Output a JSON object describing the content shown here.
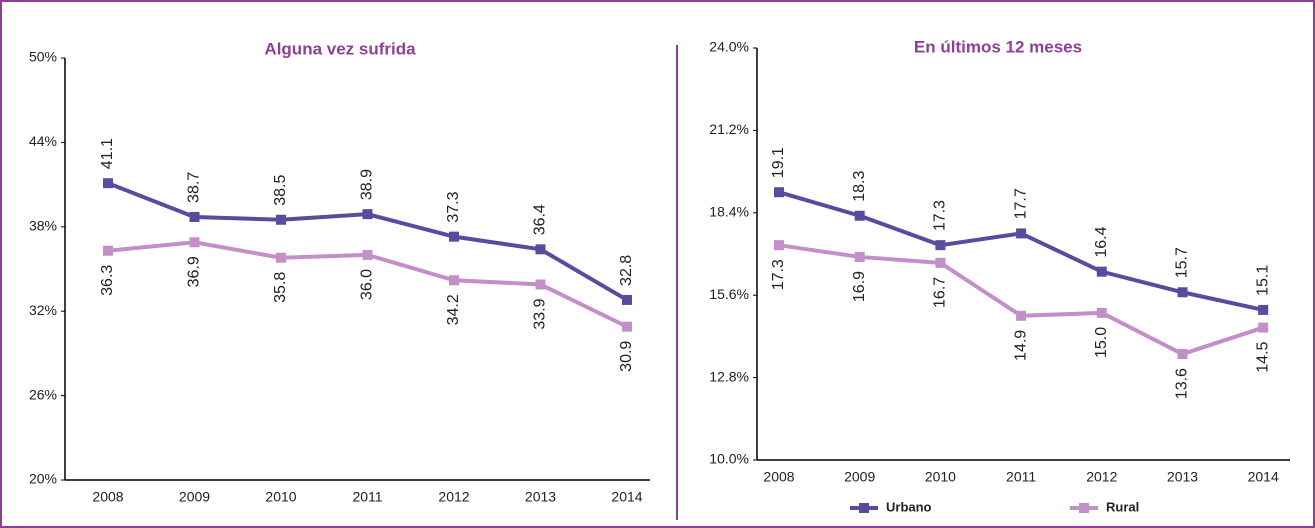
{
  "chart_data": [
    {
      "type": "line",
      "title": "Alguna vez sufrida",
      "categories": [
        "2008",
        "2009",
        "2010",
        "2011",
        "2012",
        "2013",
        "2014"
      ],
      "ylim": [
        20,
        50
      ],
      "yticks": [
        {
          "value": 20,
          "label": "20%"
        },
        {
          "value": 26,
          "label": "26%"
        },
        {
          "value": 32,
          "label": "32%"
        },
        {
          "value": 38,
          "label": "38%"
        },
        {
          "value": 44,
          "label": "44%"
        },
        {
          "value": 50,
          "label": "50%"
        }
      ],
      "series": [
        {
          "color": "#5b4a9e",
          "values": [
            41.1,
            38.7,
            38.5,
            38.9,
            37.3,
            36.4,
            32.8
          ],
          "value_labels": [
            "41.1",
            "38.7",
            "38.5",
            "38.9",
            "37.3",
            "36.4",
            "32.8"
          ]
        },
        {
          "color": "#c38fc8",
          "values": [
            36.3,
            36.9,
            35.8,
            36.0,
            34.2,
            33.9,
            30.9
          ],
          "value_labels": [
            "36.3",
            "36.9",
            "35.8",
            "36.0",
            "34.2",
            "33.9",
            "30.9"
          ]
        }
      ]
    },
    {
      "type": "line",
      "title": "En últimos 12 meses",
      "categories": [
        "2008",
        "2009",
        "2010",
        "2011",
        "2012",
        "2013",
        "2014"
      ],
      "ylim": [
        10,
        24
      ],
      "yticks": [
        {
          "value": 10,
          "label": "10.0%"
        },
        {
          "value": 12.8,
          "label": "12.8%"
        },
        {
          "value": 15.6,
          "label": "15.6%"
        },
        {
          "value": 18.4,
          "label": "18.4%"
        },
        {
          "value": 21.2,
          "label": "21.2%"
        },
        {
          "value": 24,
          "label": "24.0%"
        }
      ],
      "legend": "bottom",
      "series": [
        {
          "name": "Urbano",
          "color": "#5b4a9e",
          "values": [
            19.1,
            18.3,
            17.3,
            17.7,
            16.4,
            15.7,
            15.1
          ],
          "value_labels": [
            "19.1",
            "18.3",
            "17.3",
            "17.7",
            "16.4",
            "15.7",
            "15.1"
          ]
        },
        {
          "name": "Rural",
          "color": "#c38fc8",
          "values": [
            17.3,
            16.9,
            16.7,
            14.9,
            15.0,
            13.6,
            14.5
          ],
          "value_labels": [
            "17.3",
            "16.9",
            "16.7",
            "14.9",
            "15.0",
            "13.6",
            "14.5"
          ]
        }
      ]
    }
  ]
}
